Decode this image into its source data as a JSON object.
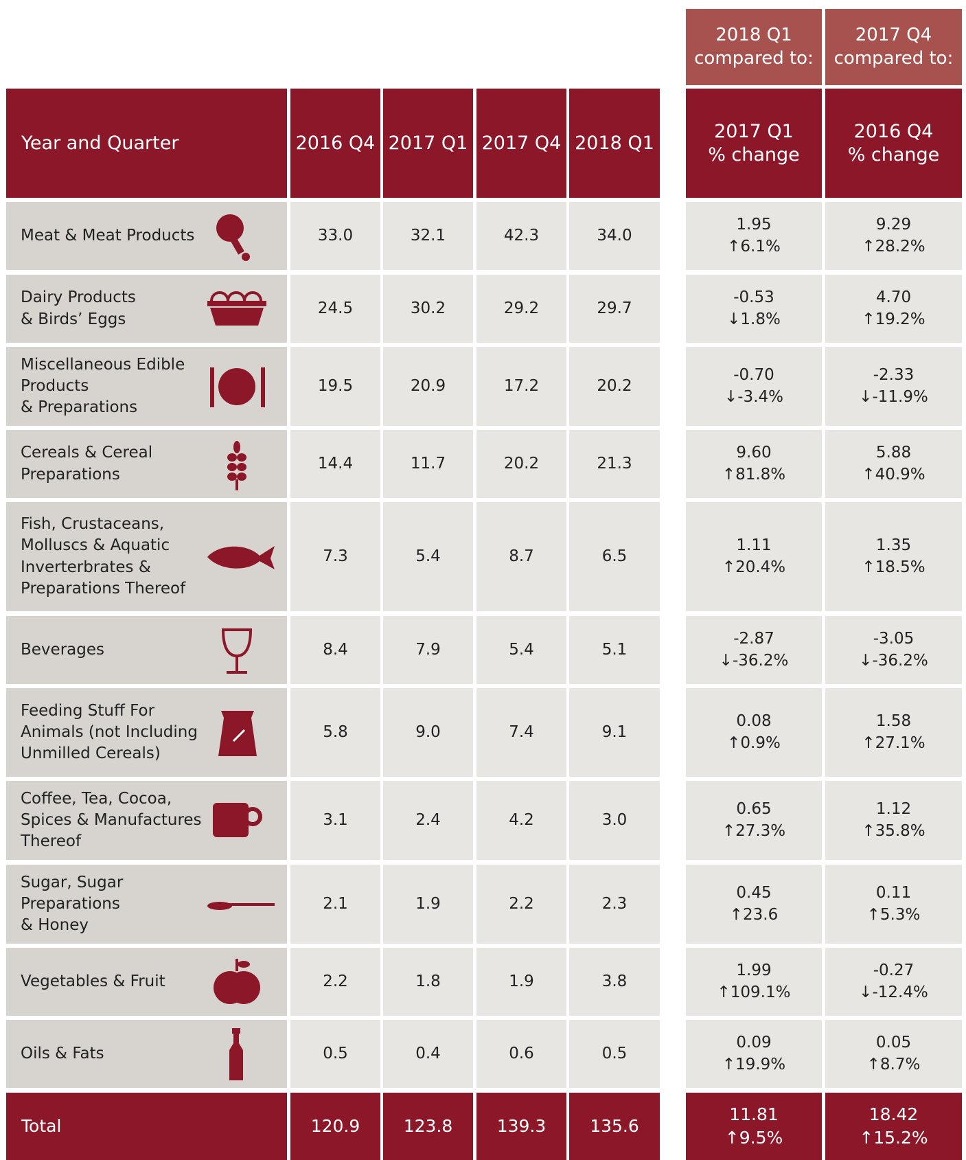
{
  "header": {
    "groups": [
      "2018 Q1\ncompared to:",
      "2017 Q4\ncompared to:"
    ],
    "columns": [
      "Year and Quarter",
      "2016 Q4",
      "2017 Q1",
      "2017 Q4",
      "2018 Q1",
      "2017 Q1\n% change",
      "2016 Q4\n% change"
    ]
  },
  "rows": [
    {
      "label": "Meat & Meat Products",
      "values": [
        "33.0",
        "32.1",
        "42.3",
        "34.0"
      ],
      "changes": [
        {
          "diff": "1.95",
          "pct": "↑6.1%"
        },
        {
          "diff": "9.29",
          "pct": "↑28.2%"
        }
      ]
    },
    {
      "label": "Dairy Products\n& Birds’ Eggs",
      "values": [
        "24.5",
        "30.2",
        "29.2",
        "29.7"
      ],
      "changes": [
        {
          "diff": "-0.53",
          "pct": "↓1.8%"
        },
        {
          "diff": "4.70",
          "pct": "↑19.2%"
        }
      ]
    },
    {
      "label": "Miscellaneous Edible\nProducts\n& Preparations",
      "values": [
        "19.5",
        "20.9",
        "17.2",
        "20.2"
      ],
      "changes": [
        {
          "diff": "-0.70",
          "pct": "↓-3.4%"
        },
        {
          "diff": "-2.33",
          "pct": "↓-11.9%"
        }
      ]
    },
    {
      "label": "Cereals & Cereal\nPreparations",
      "values": [
        "14.4",
        "11.7",
        "20.2",
        "21.3"
      ],
      "changes": [
        {
          "diff": "9.60",
          "pct": "↑81.8%"
        },
        {
          "diff": "5.88",
          "pct": "↑40.9%"
        }
      ]
    },
    {
      "label": "Fish, Crustaceans,\nMolluscs & Aquatic\nInverterbrates &\nPreparations Thereof",
      "values": [
        "7.3",
        "5.4",
        "8.7",
        "6.5"
      ],
      "changes": [
        {
          "diff": "1.11",
          "pct": "↑20.4%"
        },
        {
          "diff": "1.35",
          "pct": "↑18.5%"
        }
      ]
    },
    {
      "label": "Beverages",
      "values": [
        "8.4",
        "7.9",
        "5.4",
        "5.1"
      ],
      "changes": [
        {
          "diff": "-2.87",
          "pct": "↓-36.2%"
        },
        {
          "diff": "-3.05",
          "pct": "↓-36.2%"
        }
      ]
    },
    {
      "label": "Feeding Stuff For\nAnimals (not Including\nUnmilled Cereals)",
      "values": [
        "5.8",
        "9.0",
        "7.4",
        "9.1"
      ],
      "changes": [
        {
          "diff": "0.08",
          "pct": "↑0.9%"
        },
        {
          "diff": "1.58",
          "pct": "↑27.1%"
        }
      ]
    },
    {
      "label": "Coffee, Tea, Cocoa,\nSpices & Manufactures\nThereof",
      "values": [
        "3.1",
        "2.4",
        "4.2",
        "3.0"
      ],
      "changes": [
        {
          "diff": "0.65",
          "pct": "↑27.3%"
        },
        {
          "diff": "1.12",
          "pct": "↑35.8%"
        }
      ]
    },
    {
      "label": "Sugar, Sugar\nPreparations\n& Honey",
      "values": [
        "2.1",
        "1.9",
        "2.2",
        "2.3"
      ],
      "changes": [
        {
          "diff": "0.45",
          "pct": "↑23.6"
        },
        {
          "diff": "0.11",
          "pct": "↑5.3%"
        }
      ]
    },
    {
      "label": "Vegetables & Fruit",
      "values": [
        "2.2",
        "1.8",
        "1.9",
        "3.8"
      ],
      "changes": [
        {
          "diff": "1.99",
          "pct": "↑109.1%"
        },
        {
          "diff": "-0.27",
          "pct": "↓-12.4%"
        }
      ]
    },
    {
      "label": "Oils & Fats",
      "values": [
        "0.5",
        "0.4",
        "0.6",
        "0.5"
      ],
      "changes": [
        {
          "diff": "0.09",
          "pct": "↑19.9%"
        },
        {
          "diff": "0.05",
          "pct": "↑8.7%"
        }
      ]
    }
  ],
  "total": {
    "label": "Total",
    "values": [
      "120.9",
      "123.8",
      "139.3",
      "135.6"
    ],
    "changes": [
      {
        "diff": "11.81",
        "pct": "↑9.5%"
      },
      {
        "diff": "18.42",
        "pct": "↑15.2%"
      }
    ]
  }
}
